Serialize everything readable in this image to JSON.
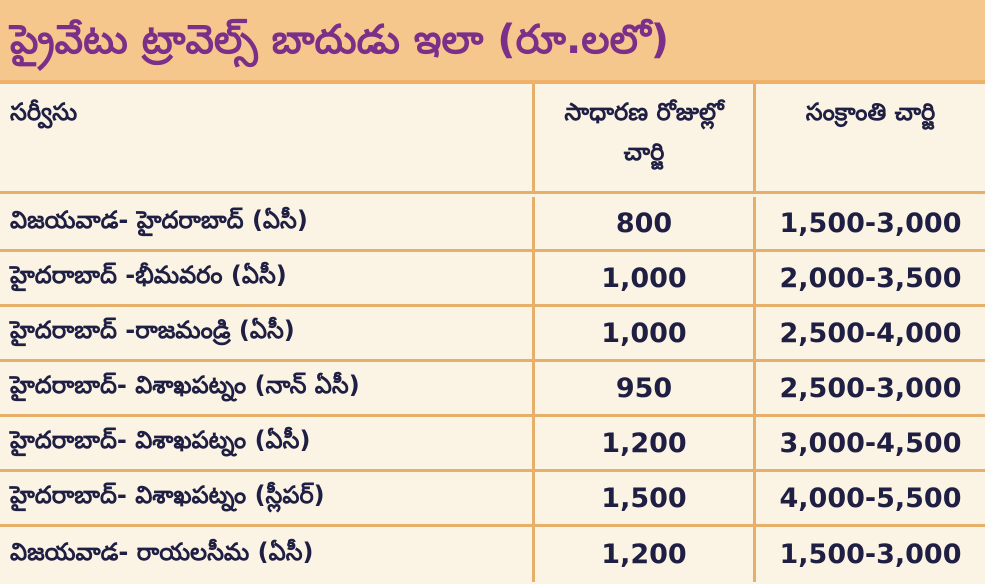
{
  "title": "ప్రైవేటు ట్రావెల్స్ బాదుడు ఇలా (రూ.లలో)",
  "table": {
    "headers": [
      "సర్వీసు",
      "సాధారణ రోజుల్లో చార్జి",
      "సంక్రాంతి చార్జి"
    ],
    "rows": [
      {
        "service": "విజయవాడ- హైదరాబాద్ (ఏసీ)",
        "normal": "800",
        "sankranti": "1,500-3,000"
      },
      {
        "service": "హైదరాబాద్ -భీమవరం (ఏసీ)",
        "normal": "1,000",
        "sankranti": "2,000-3,500"
      },
      {
        "service": "హైదరాబాద్ -రాజమండ్రి (ఏసీ)",
        "normal": "1,000",
        "sankranti": "2,500-4,000"
      },
      {
        "service": "హైదరాబాద్- విశాఖపట్నం (నాన్ ఏసీ)",
        "normal": "950",
        "sankranti": "2,500-3,000"
      },
      {
        "service": "హైదరాబాద్- విశాఖపట్నం (ఏసీ)",
        "normal": "1,200",
        "sankranti": "3,000-4,500"
      },
      {
        "service": "హైదరాబాద్- విశాఖపట్నం (స్లీపర్)",
        "normal": "1,500",
        "sankranti": "4,000-5,500"
      },
      {
        "service": "విజయవాడ- రాయలసీమ (ఏసీ)",
        "normal": "1,200",
        "sankranti": "1,500-3,000"
      }
    ]
  },
  "colors": {
    "title_background": "#f6c78d",
    "title_text": "#7b2f88",
    "table_background": "#fbf3e3",
    "rule": "#e6b06a",
    "body_text": "#1f1f44"
  }
}
